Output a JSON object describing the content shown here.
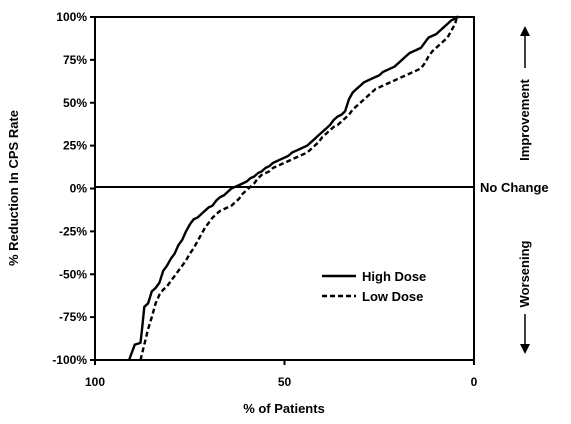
{
  "chart_data": {
    "type": "line",
    "title": "",
    "xlabel": "% of Patients",
    "ylabel": "% Reduction In CPS Rate",
    "xlim": [
      100,
      0
    ],
    "ylim": [
      -100,
      100
    ],
    "x_reversed": true,
    "x_ticks": [
      100,
      50,
      0
    ],
    "x_tick_labels": [
      "100",
      "50",
      "0"
    ],
    "y_ticks": [
      100,
      75,
      50,
      25,
      0,
      -25,
      -50,
      -75,
      -100
    ],
    "y_tick_labels": [
      "100%",
      "75%",
      "50%",
      "25%",
      "0%",
      "-25%",
      "-50%",
      "-75%",
      "-100%"
    ],
    "grid": false,
    "zero_line_label": "No Change",
    "annotations": {
      "up": "Improvement",
      "down": "Worsening"
    },
    "legend_position": "lower-right",
    "series": [
      {
        "name": "High Dose",
        "style": "solid",
        "x": [
          91,
          89.5,
          88,
          87.5,
          87,
          86,
          85,
          84,
          83,
          82,
          81,
          80,
          79,
          78,
          77,
          76,
          75,
          74,
          73,
          72,
          71,
          70,
          69,
          68,
          67,
          66,
          65,
          64,
          63,
          62,
          61,
          60,
          59,
          58,
          57,
          56,
          55,
          54,
          53,
          52,
          51,
          50,
          49,
          48,
          47,
          46,
          45,
          44,
          43,
          42,
          41,
          40,
          39,
          38,
          37,
          36,
          35,
          34,
          33,
          32,
          31,
          30,
          29,
          28,
          27,
          26,
          25,
          24,
          23,
          22,
          21,
          20,
          19,
          18,
          17,
          16,
          15,
          14,
          13,
          12,
          11,
          10,
          9,
          8,
          7,
          6,
          5,
          4.5,
          4
        ],
        "y": [
          -100,
          -91,
          -90,
          -80,
          -69,
          -67,
          -60,
          -58,
          -55,
          -48,
          -45,
          -41,
          -38,
          -33,
          -30,
          -25,
          -21,
          -18,
          -17,
          -15,
          -13,
          -11,
          -10,
          -7,
          -5,
          -4,
          -2,
          0,
          1,
          2,
          3,
          4,
          6,
          7,
          9,
          10,
          12,
          13,
          15,
          16,
          17,
          18,
          19,
          21,
          22,
          23,
          24,
          25,
          27,
          29,
          31,
          33,
          35,
          37,
          40,
          42,
          43,
          45,
          52,
          56,
          58,
          60,
          62,
          63,
          64,
          65,
          66,
          68,
          69,
          70,
          71,
          73,
          75,
          77,
          79,
          80,
          81,
          82,
          85,
          88,
          89,
          90,
          92,
          94,
          96,
          98,
          99,
          100,
          100
        ]
      },
      {
        "name": "Low Dose",
        "style": "dashed",
        "x": [
          88,
          87,
          86,
          85,
          84,
          83,
          82,
          81,
          80,
          79,
          78,
          77,
          76,
          75,
          74,
          73,
          72,
          71,
          70,
          69,
          68,
          67,
          66,
          65,
          64,
          63,
          62,
          61,
          60,
          59,
          58,
          57,
          56,
          55,
          54,
          53,
          52,
          51,
          50,
          49,
          48,
          47,
          46,
          45,
          44,
          43,
          42,
          41,
          40,
          39,
          38,
          37,
          36,
          35,
          34,
          33,
          32,
          31,
          30,
          29,
          28,
          27,
          26,
          25,
          24,
          23,
          22,
          21,
          20,
          19,
          18,
          17,
          16,
          15,
          14,
          13,
          12,
          11,
          10,
          9,
          8,
          7,
          6,
          5,
          4.5
        ],
        "y": [
          -100,
          -91,
          -82,
          -75,
          -67,
          -62,
          -59,
          -57,
          -54,
          -51,
          -48,
          -45,
          -42,
          -38,
          -35,
          -31,
          -27,
          -23,
          -20,
          -17,
          -15,
          -13,
          -12,
          -11,
          -10,
          -8,
          -6,
          -3,
          -1,
          1,
          3,
          6,
          8,
          9,
          10,
          12,
          13,
          14,
          15,
          16,
          17,
          18,
          19,
          20,
          21,
          23,
          25,
          27,
          30,
          32,
          34,
          36,
          37,
          39,
          41,
          43,
          46,
          48,
          50,
          52,
          54,
          56,
          58,
          59,
          60,
          61,
          62,
          63,
          64,
          65,
          66,
          67,
          68,
          69,
          70,
          73,
          77,
          80,
          82,
          84,
          86,
          88,
          92,
          96,
          100
        ]
      }
    ]
  }
}
